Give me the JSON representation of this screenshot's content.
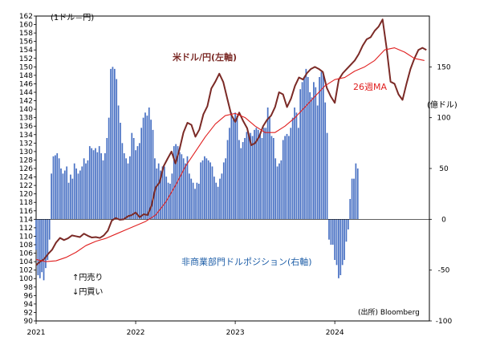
{
  "chart_data": {
    "type": "bar+line",
    "left_axis_unit": "(1ドル＝円)",
    "right_axis_unit": "(億ドル)",
    "left_ylim": [
      90,
      162
    ],
    "left_ticks": [
      90,
      92,
      94,
      96,
      98,
      100,
      102,
      104,
      106,
      108,
      110,
      112,
      114,
      116,
      118,
      120,
      122,
      124,
      126,
      128,
      130,
      132,
      134,
      136,
      138,
      140,
      142,
      144,
      146,
      148,
      150,
      152,
      154,
      156,
      158,
      160,
      162
    ],
    "right_ylim": [
      -100,
      200
    ],
    "right_ticks": [
      -100,
      -50,
      0,
      50,
      100,
      150
    ],
    "xlim": [
      2021.0,
      2024.95
    ],
    "x_ticks": [
      {
        "x": 2021,
        "label": "2021"
      },
      {
        "x": 2022,
        "label": "2022"
      },
      {
        "x": 2023,
        "label": "2023"
      },
      {
        "x": 2024,
        "label": "2024"
      }
    ],
    "series": [
      {
        "name": "非商業部門ドルポジション(右軸)",
        "type": "bar",
        "axis": "right",
        "color": "#4a72c4",
        "x_start": 2021.0,
        "x_step": 0.01923,
        "values": [
          -30,
          -55,
          -58,
          -52,
          -60,
          -48,
          -40,
          -20,
          45,
          62,
          63,
          65,
          60,
          50,
          45,
          48,
          52,
          36,
          44,
          40,
          55,
          50,
          45,
          48,
          52,
          60,
          55,
          58,
          72,
          70,
          68,
          70,
          66,
          72,
          65,
          58,
          65,
          80,
          100,
          148,
          150,
          148,
          138,
          112,
          95,
          75,
          65,
          60,
          55,
          62,
          85,
          80,
          68,
          72,
          75,
          90,
          100,
          105,
          102,
          110,
          98,
          88,
          60,
          50,
          55,
          48,
          52,
          52,
          42,
          36,
          35,
          45,
          72,
          74,
          72,
          66,
          64,
          60,
          55,
          62,
          45,
          40,
          36,
          30,
          36,
          35,
          56,
          58,
          62,
          60,
          58,
          56,
          52,
          42,
          36,
          32,
          40,
          45,
          56,
          60,
          78,
          90,
          105,
          98,
          105,
          102,
          78,
          70,
          76,
          80,
          86,
          85,
          85,
          82,
          88,
          90,
          88,
          84,
          80,
          90,
          90,
          110,
          100,
          82,
          80,
          60,
          52,
          55,
          58,
          78,
          82,
          84,
          82,
          90,
          100,
          110,
          105,
          90,
          128,
          135,
          140,
          148,
          140,
          125,
          120,
          135,
          130,
          112,
          140,
          145,
          142,
          115,
          85,
          -20,
          -25,
          -25,
          -40,
          -45,
          -58,
          -55,
          -45,
          -40,
          -22,
          -10,
          20,
          40,
          40,
          55,
          50
        ]
      },
      {
        "name": "米ドル/円(左軸)",
        "type": "line",
        "axis": "left",
        "color": "#7b2a26",
        "x": [
          2021.0,
          2021.04,
          2021.08,
          2021.12,
          2021.16,
          2021.2,
          2021.24,
          2021.28,
          2021.32,
          2021.36,
          2021.4,
          2021.44,
          2021.48,
          2021.52,
          2021.56,
          2021.6,
          2021.64,
          2021.68,
          2021.72,
          2021.76,
          2021.8,
          2021.84,
          2021.88,
          2021.92,
          2021.96,
          2022.0,
          2022.04,
          2022.08,
          2022.12,
          2022.16,
          2022.2,
          2022.24,
          2022.28,
          2022.32,
          2022.36,
          2022.4,
          2022.44,
          2022.48,
          2022.52,
          2022.56,
          2022.6,
          2022.64,
          2022.68,
          2022.72,
          2022.76,
          2022.8,
          2022.84,
          2022.88,
          2022.92,
          2022.96,
          2023.0,
          2023.04,
          2023.08,
          2023.12,
          2023.16,
          2023.2,
          2023.24,
          2023.28,
          2023.32,
          2023.36,
          2023.4,
          2023.44,
          2023.48,
          2023.52,
          2023.56,
          2023.6,
          2023.64,
          2023.68,
          2023.72,
          2023.76,
          2023.8,
          2023.84,
          2023.88,
          2023.92,
          2023.96,
          2024.0,
          2024.04,
          2024.08,
          2024.12,
          2024.16,
          2024.2,
          2024.24,
          2024.28,
          2024.32,
          2024.36,
          2024.4,
          2024.44,
          2024.48,
          2024.52,
          2024.56,
          2024.6,
          2024.64,
          2024.68,
          2024.72,
          2024.76,
          2024.8,
          2024.84,
          2024.88,
          2024.92
        ],
        "values": [
          103.2,
          104.0,
          104.6,
          105.8,
          106.8,
          108.5,
          109.6,
          109.1,
          109.5,
          110.2,
          110.0,
          109.8,
          110.6,
          110.1,
          109.7,
          109.8,
          109.6,
          110.2,
          111.3,
          113.7,
          114.3,
          113.9,
          114.0,
          114.7,
          115.0,
          115.6,
          114.5,
          115.2,
          115.0,
          117.3,
          121.5,
          122.7,
          126.5,
          128.3,
          130.0,
          127.2,
          130.5,
          134.5,
          136.8,
          136.3,
          133.5,
          135.2,
          138.8,
          140.7,
          144.9,
          146.5,
          148.4,
          146.4,
          142.5,
          138.7,
          137.0,
          139.2,
          137.2,
          135.5,
          131.5,
          132.0,
          133.5,
          136.0,
          137.5,
          138.5,
          140.5,
          144.0,
          143.5,
          140.5,
          142.5,
          145.5,
          147.5,
          147.0,
          148.5,
          149.5,
          150.0,
          149.5,
          148.8,
          145.0,
          143.0,
          141.5,
          147.0,
          148.5,
          149.5,
          150.5,
          151.5,
          153.0,
          155.0,
          156.5,
          157.0,
          158.5,
          159.5,
          161.2,
          154.5,
          146.5,
          146.0,
          143.5,
          142.2,
          146.0,
          149.5,
          152.0,
          154.0,
          154.5,
          154.0
        ]
      },
      {
        "name": "26週MA",
        "type": "line",
        "axis": "left",
        "color": "#e02020",
        "x": [
          2021.0,
          2021.1,
          2021.2,
          2021.3,
          2021.4,
          2021.5,
          2021.6,
          2021.7,
          2021.8,
          2021.9,
          2022.0,
          2022.1,
          2022.2,
          2022.3,
          2022.4,
          2022.5,
          2022.6,
          2022.7,
          2022.8,
          2022.9,
          2023.0,
          2023.1,
          2023.2,
          2023.3,
          2023.4,
          2023.5,
          2023.6,
          2023.7,
          2023.8,
          2023.9,
          2024.0,
          2024.1,
          2024.2,
          2024.3,
          2024.4,
          2024.5,
          2024.6,
          2024.7,
          2024.8,
          2024.9
        ],
        "values": [
          104.5,
          104.0,
          104.2,
          105.0,
          106.2,
          107.8,
          108.8,
          109.5,
          110.5,
          111.5,
          112.5,
          113.5,
          115.0,
          118.0,
          122.0,
          126.5,
          130.0,
          133.5,
          136.5,
          138.5,
          139.0,
          138.0,
          136.0,
          134.5,
          134.5,
          136.0,
          138.0,
          140.5,
          143.0,
          145.5,
          147.0,
          147.5,
          149.0,
          150.0,
          151.5,
          154.0,
          154.5,
          153.5,
          152.0,
          151.5
        ]
      }
    ]
  },
  "labels": {
    "usdjpy": "米ドル/円(左軸)",
    "ma": "26週MA",
    "position": "非商業部門ドルポジション(右軸)",
    "yen_sell": "↑円売り",
    "yen_buy": "↓円買い",
    "source": "(出所) Bloomberg"
  }
}
